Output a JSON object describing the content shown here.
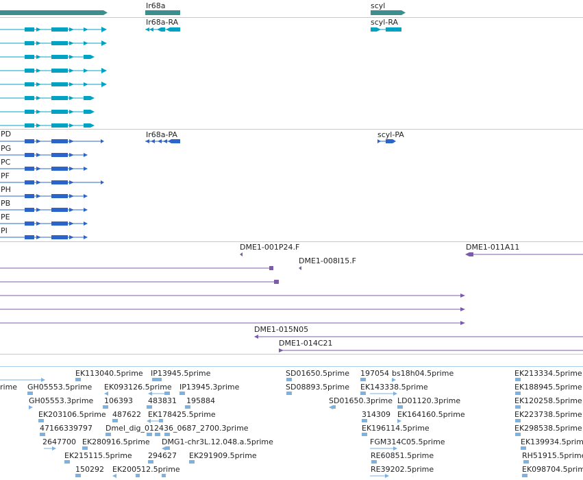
{
  "colors": {
    "gene": "#3c8f8f",
    "transcript": "#00a3c4",
    "protein": "#2b65c9",
    "clone": "#7b5ca8",
    "est": "#7db1df",
    "divider": "#c8c8c8",
    "est_divider": "#a8d0e6"
  },
  "tracks": {
    "genes": [
      {
        "name": "Ir68a"
      },
      {
        "name": "scyl"
      }
    ],
    "transcripts": [
      {
        "name": "Ir68a-RA"
      },
      {
        "name": "scyl-RA"
      }
    ],
    "proteins": {
      "left_suffixes": [
        "PD",
        "PG",
        "PC",
        "PF",
        "PH",
        "PB",
        "PE",
        "PI"
      ],
      "named": [
        {
          "name": "Ir68a-PA"
        },
        {
          "name": "scyl-PA"
        }
      ]
    },
    "clones": [
      {
        "name": "DME1-001P24.F"
      },
      {
        "name": "DME1-011A11"
      },
      {
        "name": "DME1-008I15.F"
      },
      {
        "name": "DME1-015N05"
      },
      {
        "name": "DME1-014C21"
      }
    ],
    "ests": [
      {
        "name": "EK113040.5prime"
      },
      {
        "name": "IP13945.5prime"
      },
      {
        "name": "SD01650.5prime"
      },
      {
        "name": "197054"
      },
      {
        "name": "bs18h04.5prime"
      },
      {
        "name": "EK213334.5prime"
      },
      {
        "name": "rime"
      },
      {
        "name": "GH05553.5prime"
      },
      {
        "name": "EK093126.5prime"
      },
      {
        "name": "IP13945.3prime"
      },
      {
        "name": "SD08893.5prime"
      },
      {
        "name": "EK143338.5prime"
      },
      {
        "name": "EK188945.5prime"
      },
      {
        "name": "GH05553.3prime"
      },
      {
        "name": "106393"
      },
      {
        "name": "483831"
      },
      {
        "name": "195884"
      },
      {
        "name": "SD01650.3prime"
      },
      {
        "name": "LD01120.3prime"
      },
      {
        "name": "EK120258.5prime"
      },
      {
        "name": "EK203106.5prime"
      },
      {
        "name": "487622"
      },
      {
        "name": "EK178425.5prime"
      },
      {
        "name": "314309"
      },
      {
        "name": "EK164160.5prime"
      },
      {
        "name": "EK223738.5prime"
      },
      {
        "name": "47166339797"
      },
      {
        "name": "Dmel_dig_012436_0687_2700.3prime"
      },
      {
        "name": "EK196114.5prime"
      },
      {
        "name": "EK298538.5prime"
      },
      {
        "name": "2647700"
      },
      {
        "name": "EK280916.5prime"
      },
      {
        "name": "DMG1-chr3L.12.048.a.5prime"
      },
      {
        "name": "FGM314C05.5prime"
      },
      {
        "name": "EK139934.5prime"
      },
      {
        "name": "EK215115.5prime"
      },
      {
        "name": "294627"
      },
      {
        "name": "EK291909.5prime"
      },
      {
        "name": "RE60851.5prime"
      },
      {
        "name": "RH51915.5prime"
      },
      {
        "name": "150292"
      },
      {
        "name": "EK200512.5prime"
      },
      {
        "name": "RE39202.5prime"
      },
      {
        "name": "EK098704.5prime"
      }
    ]
  }
}
